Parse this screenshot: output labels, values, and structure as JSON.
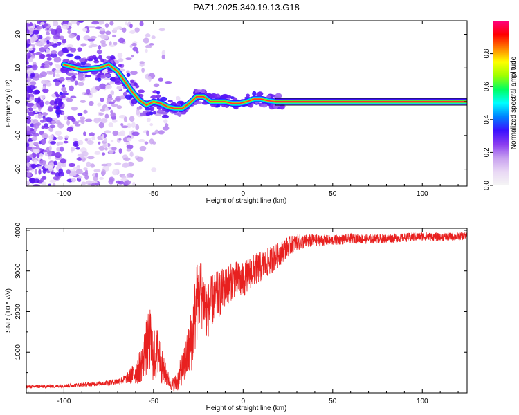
{
  "figure": {
    "title": "PAZ1.2025.340.19.13.G18"
  },
  "colors": {
    "snr_line": "#e8201f",
    "signal_band": "#ff2a2a",
    "frame": "#000000"
  },
  "chart_data": [
    {
      "type": "heatmap",
      "title": "PAZ1.2025.340.19.13.G18",
      "xlabel": "Height of straight line (km)",
      "ylabel": "Frequency (Hz)",
      "xlim": [
        -121,
        125
      ],
      "ylim": [
        -25,
        24
      ],
      "xticks": [
        -100,
        -50,
        0,
        50,
        100
      ],
      "yticks": [
        -20,
        -10,
        0,
        10,
        20
      ],
      "xtick_labels": [
        "-100",
        "-50",
        "0",
        "50",
        "100"
      ],
      "ytick_labels": [
        "-20",
        "-10",
        "0",
        "10",
        "20"
      ],
      "colorbar": {
        "label": "Normalized spectral amplitude",
        "range": [
          0,
          1
        ],
        "ticks": [
          0.0,
          0.2,
          0.4,
          0.6,
          0.8
        ],
        "tick_labels": [
          "0.0",
          "0.2",
          "0.4",
          "0.6",
          "0.8"
        ],
        "colormap": [
          "#f5f5f5",
          "#e9d8f5",
          "#c7a0ef",
          "#8a3cf0",
          "#3a10ff",
          "#0080ff",
          "#00ffff",
          "#00ff60",
          "#a0ff00",
          "#ffff00",
          "#ff8000",
          "#ff0000",
          "#ff0080"
        ]
      },
      "ridge": {
        "x": [
          -100,
          -90,
          -80,
          -75,
          -70,
          -66,
          -62,
          -58,
          -54,
          -50,
          -46,
          -42,
          -38,
          -34,
          -30,
          -26,
          -22,
          -18,
          -14,
          -10,
          -6,
          -2,
          2,
          6,
          10,
          14,
          18,
          22,
          125
        ],
        "y": [
          11,
          9.5,
          10,
          11,
          9,
          6,
          3,
          0.5,
          -1,
          0,
          -0.5,
          -1.5,
          -2,
          -2,
          -0.5,
          1.5,
          1.5,
          0,
          0,
          0,
          -0.5,
          -0.5,
          0,
          0.8,
          0.8,
          0.3,
          0,
          0,
          0
        ]
      }
    },
    {
      "type": "line",
      "xlabel": "Height of straight line (km)",
      "ylabel": "SNR (10 * v/v)",
      "xlim": [
        -121,
        125
      ],
      "ylim": [
        0,
        4050
      ],
      "xticks": [
        -100,
        -50,
        0,
        50,
        100
      ],
      "yticks": [
        1000,
        2000,
        3000,
        4000
      ],
      "xtick_labels": [
        "-100",
        "-50",
        "0",
        "50",
        "100"
      ],
      "ytick_labels": [
        "1000",
        "2000",
        "3000",
        "4000"
      ],
      "series": [
        {
          "name": "SNR",
          "x": [
            -121,
            -110,
            -100,
            -90,
            -80,
            -70,
            -65,
            -60,
            -57,
            -54,
            -52,
            -50,
            -47,
            -45,
            -42,
            -40,
            -37,
            -34,
            -31,
            -28,
            -26,
            -24,
            -22,
            -20,
            -17,
            -14,
            -10,
            -5,
            0,
            5,
            10,
            15,
            20,
            25,
            30,
            40,
            50,
            60,
            70,
            80,
            90,
            100,
            110,
            125
          ],
          "values": [
            150,
            160,
            170,
            200,
            230,
            280,
            350,
            500,
            700,
            1100,
            1300,
            900,
            1000,
            600,
            350,
            200,
            250,
            600,
            900,
            1500,
            2200,
            2500,
            2300,
            2000,
            2300,
            2400,
            2600,
            2800,
            2750,
            3000,
            3100,
            3250,
            3400,
            3600,
            3700,
            3750,
            3750,
            3800,
            3780,
            3800,
            3820,
            3850,
            3830,
            3860
          ],
          "noise": [
            40,
            40,
            45,
            50,
            60,
            80,
            120,
            300,
            450,
            700,
            800,
            650,
            650,
            400,
            200,
            150,
            250,
            400,
            600,
            900,
            1000,
            900,
            800,
            700,
            650,
            600,
            500,
            450,
            450,
            400,
            380,
            350,
            300,
            250,
            200,
            150,
            130,
            120,
            120,
            110,
            110,
            110,
            100,
            100
          ]
        }
      ]
    }
  ]
}
